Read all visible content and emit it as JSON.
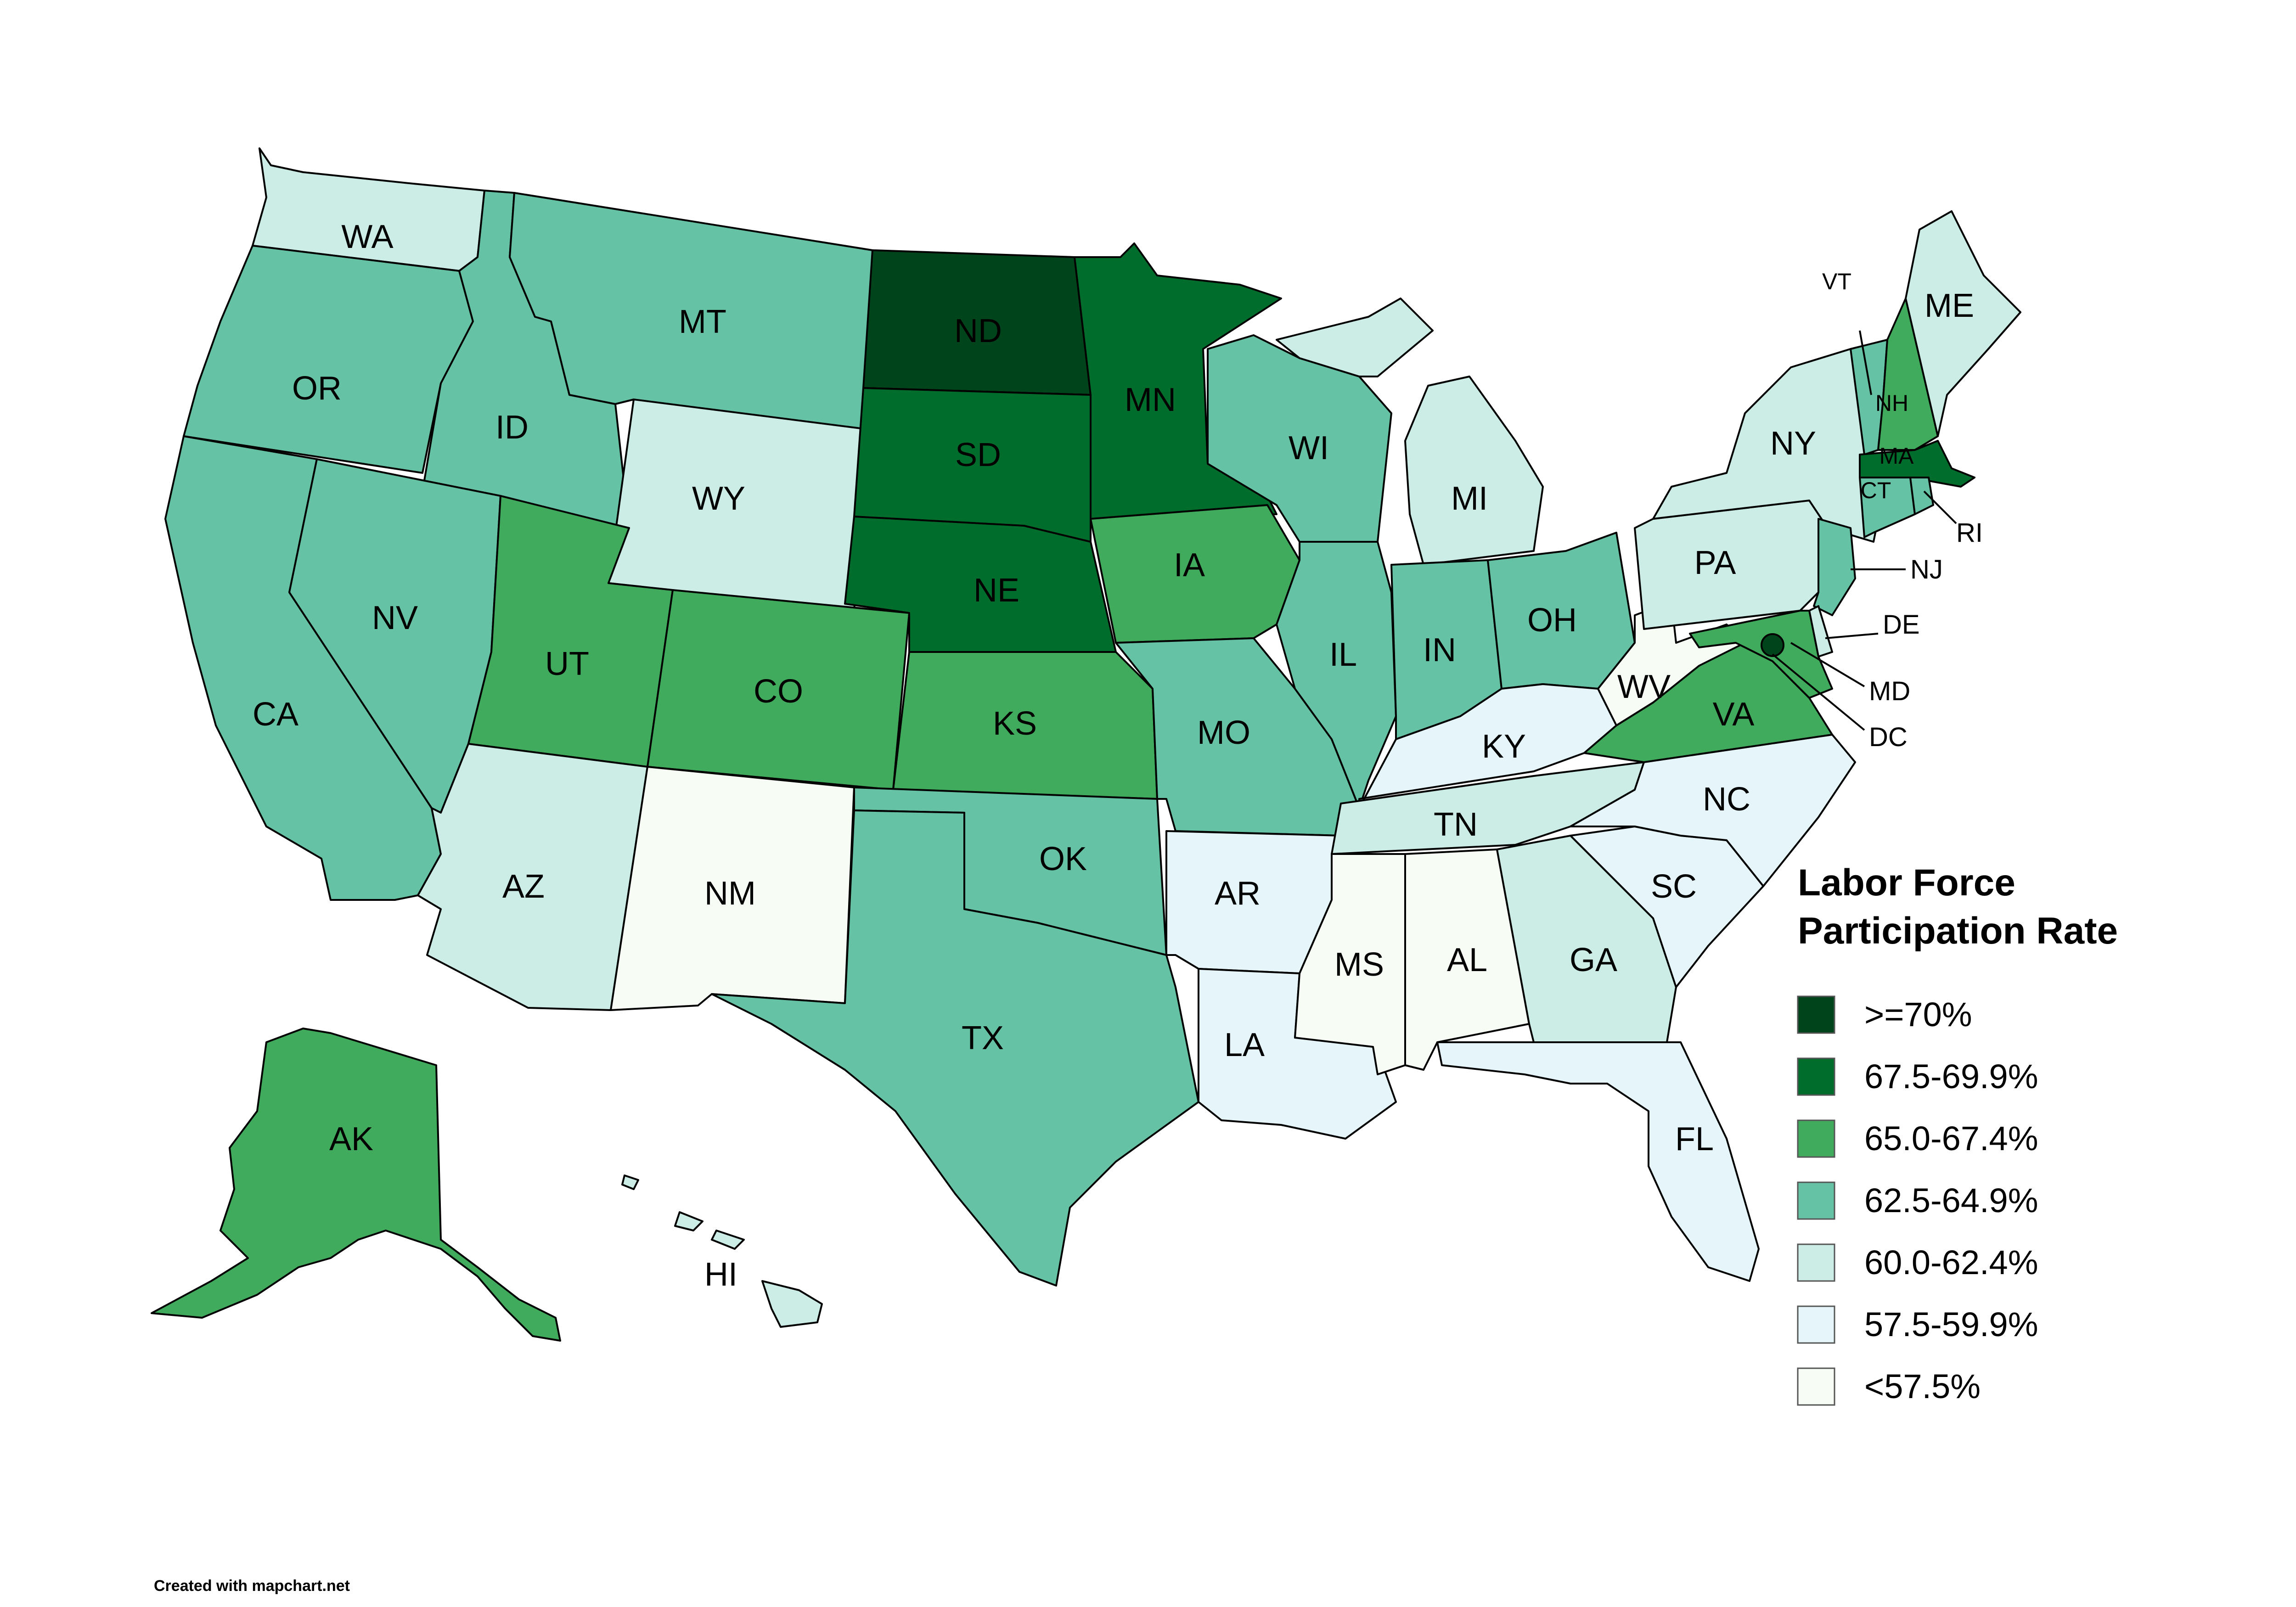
{
  "legend": {
    "title_line1": "Labor Force",
    "title_line2": "Participation Rate",
    "items": [
      {
        "label": ">=70%",
        "color": "#00441b"
      },
      {
        "label": "67.5-69.9%",
        "color": "#006d2c"
      },
      {
        "label": "65.0-67.4%",
        "color": "#41ab5d"
      },
      {
        "label": "62.5-64.9%",
        "color": "#66c2a4"
      },
      {
        "label": "60.0-62.4%",
        "color": "#ccece6"
      },
      {
        "label": "57.5-59.9%",
        "color": "#e5f5f9"
      },
      {
        "label": "<57.5%",
        "color": "#f7fcf5"
      }
    ]
  },
  "states": {
    "WA": {
      "label": "WA",
      "bin": 4
    },
    "OR": {
      "label": "OR",
      "bin": 3
    },
    "CA": {
      "label": "CA",
      "bin": 3
    },
    "ID": {
      "label": "ID",
      "bin": 3
    },
    "NV": {
      "label": "NV",
      "bin": 3
    },
    "MT": {
      "label": "MT",
      "bin": 3
    },
    "WY": {
      "label": "WY",
      "bin": 4
    },
    "UT": {
      "label": "UT",
      "bin": 2
    },
    "AZ": {
      "label": "AZ",
      "bin": 4
    },
    "CO": {
      "label": "CO",
      "bin": 2
    },
    "NM": {
      "label": "NM",
      "bin": 6
    },
    "ND": {
      "label": "ND",
      "bin": 0
    },
    "SD": {
      "label": "SD",
      "bin": 1
    },
    "NE": {
      "label": "NE",
      "bin": 1
    },
    "KS": {
      "label": "KS",
      "bin": 2
    },
    "OK": {
      "label": "OK",
      "bin": 3
    },
    "TX": {
      "label": "TX",
      "bin": 3
    },
    "MN": {
      "label": "MN",
      "bin": 1
    },
    "IA": {
      "label": "IA",
      "bin": 2
    },
    "MO": {
      "label": "MO",
      "bin": 3
    },
    "AR": {
      "label": "AR",
      "bin": 5
    },
    "LA": {
      "label": "LA",
      "bin": 5
    },
    "WI": {
      "label": "WI",
      "bin": 3
    },
    "IL": {
      "label": "IL",
      "bin": 3
    },
    "MI": {
      "label": "MI",
      "bin": 4
    },
    "IN": {
      "label": "IN",
      "bin": 3
    },
    "OH": {
      "label": "OH",
      "bin": 3
    },
    "KY": {
      "label": "KY",
      "bin": 5
    },
    "TN": {
      "label": "TN",
      "bin": 4
    },
    "MS": {
      "label": "MS",
      "bin": 6
    },
    "AL": {
      "label": "AL",
      "bin": 6
    },
    "GA": {
      "label": "GA",
      "bin": 4
    },
    "FL": {
      "label": "FL",
      "bin": 5
    },
    "SC": {
      "label": "SC",
      "bin": 5
    },
    "NC": {
      "label": "NC",
      "bin": 5
    },
    "VA": {
      "label": "VA",
      "bin": 2
    },
    "WV": {
      "label": "WV",
      "bin": 6
    },
    "PA": {
      "label": "PA",
      "bin": 4
    },
    "NY": {
      "label": "NY",
      "bin": 4
    },
    "VT": {
      "label": "VT",
      "bin": 3
    },
    "NH": {
      "label": "NH",
      "bin": 2
    },
    "ME": {
      "label": "ME",
      "bin": 4
    },
    "MA": {
      "label": "MA",
      "bin": 1
    },
    "RI": {
      "label": "RI",
      "bin": 3
    },
    "CT": {
      "label": "CT",
      "bin": 3
    },
    "NJ": {
      "label": "NJ",
      "bin": 3
    },
    "DE": {
      "label": "DE",
      "bin": 4
    },
    "MD": {
      "label": "MD",
      "bin": 2
    },
    "DC": {
      "label": "DC",
      "bin": 0
    },
    "AK": {
      "label": "AK",
      "bin": 2
    },
    "HI": {
      "label": "HI",
      "bin": 4
    }
  },
  "credit": "Created with mapchart.net"
}
